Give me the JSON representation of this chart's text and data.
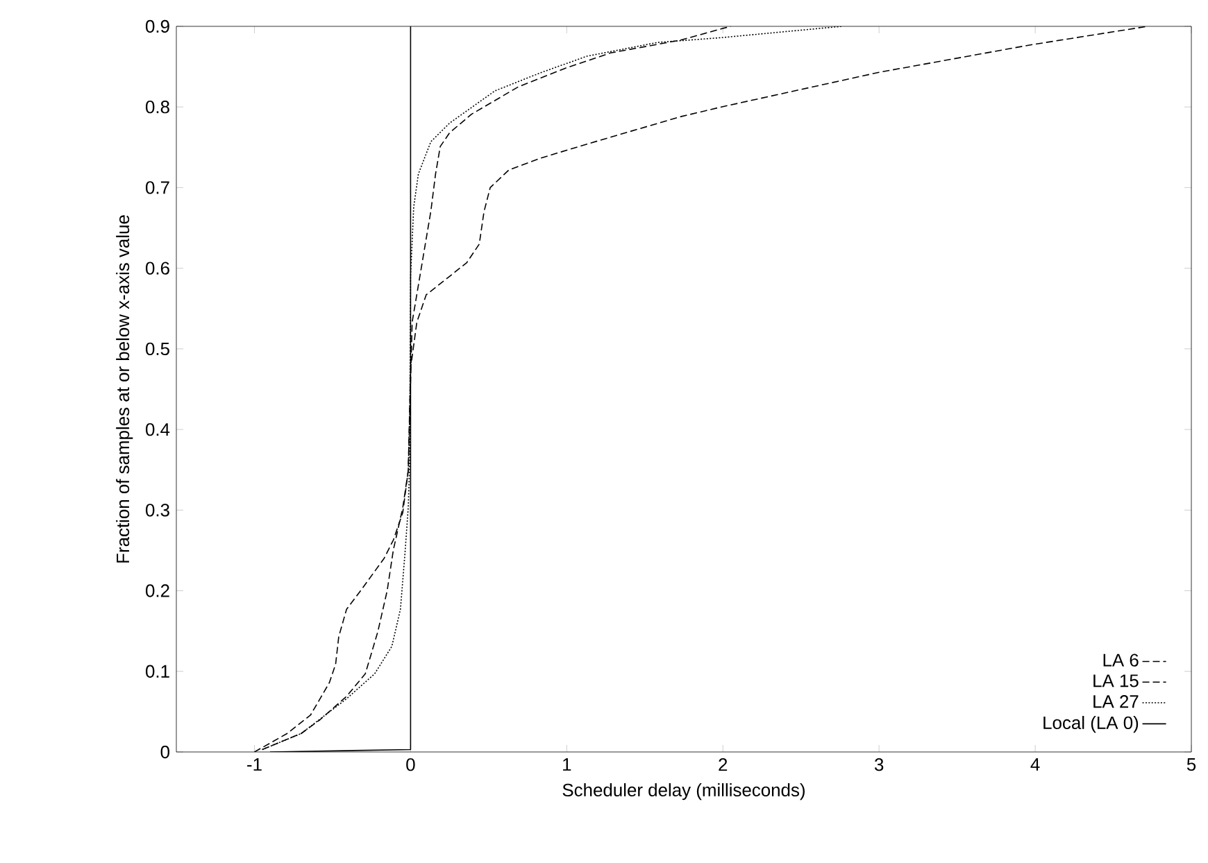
{
  "chart_data": {
    "type": "line",
    "xlabel": "Scheduler delay (milliseconds)",
    "ylabel": "Fraction of samples at or below x-axis value",
    "xlim": [
      -1.5,
      5
    ],
    "ylim": [
      0,
      0.9
    ],
    "xticks": [
      -1,
      0,
      1,
      2,
      3,
      4,
      5
    ],
    "yticks": [
      0,
      0.1,
      0.2,
      0.3,
      0.4,
      0.5,
      0.6,
      0.7,
      0.8,
      0.9
    ],
    "grid": false,
    "legend": "bottom right",
    "marker": "none",
    "series": [
      {
        "name": "LA  6",
        "color": "#000000",
        "line_style": "dashed",
        "x": [
          -1,
          -0.79,
          -0.64,
          -0.52,
          -0.48,
          -0.46,
          -0.41,
          -0.32,
          -0.17,
          -0.11,
          -0.05,
          -0.015,
          0,
          0.04,
          0.1,
          0.25,
          0.36,
          0.44,
          0.47,
          0.51,
          0.63,
          0.84,
          1.13,
          1.73,
          1.99,
          3.0,
          3.97,
          4.72
        ],
        "values": [
          0,
          0.023,
          0.046,
          0.086,
          0.109,
          0.143,
          0.177,
          0.2,
          0.24,
          0.263,
          0.297,
          0.349,
          0.476,
          0.533,
          0.567,
          0.59,
          0.607,
          0.63,
          0.67,
          0.7,
          0.722,
          0.737,
          0.754,
          0.788,
          0.8,
          0.843,
          0.877,
          0.9
        ]
      },
      {
        "name": "LA 15",
        "color": "#000000",
        "line_style": "dashed",
        "x": [
          -0.95,
          -0.7,
          -0.58,
          -0.41,
          -0.29,
          -0.21,
          -0.15,
          -0.11,
          -0.05,
          -0.015,
          0.01,
          0.07,
          0.13,
          0.16,
          0.19,
          0.25,
          0.39,
          0.69,
          0.99,
          1.28,
          1.73,
          1.99,
          2.05
        ],
        "values": [
          0.003,
          0.023,
          0.04,
          0.069,
          0.097,
          0.149,
          0.2,
          0.251,
          0.303,
          0.349,
          0.533,
          0.602,
          0.671,
          0.717,
          0.751,
          0.768,
          0.791,
          0.825,
          0.848,
          0.867,
          0.883,
          0.897,
          0.9
        ]
      },
      {
        "name": "LA 27",
        "color": "#000000",
        "line_style": "dotted",
        "x": [
          -0.95,
          -0.7,
          -0.41,
          -0.23,
          -0.12,
          -0.065,
          -0.036,
          -0.015,
          -0.006,
          0,
          0.02,
          0.05,
          0.13,
          0.25,
          0.54,
          0.84,
          1.13,
          1.58,
          1.99,
          2.76
        ],
        "values": [
          0.003,
          0.023,
          0.066,
          0.097,
          0.131,
          0.177,
          0.246,
          0.303,
          0.36,
          0.59,
          0.676,
          0.717,
          0.757,
          0.78,
          0.82,
          0.843,
          0.863,
          0.88,
          0.886,
          0.9
        ]
      },
      {
        "name": "Local (LA 0)",
        "color": "#000000",
        "line_style": "solid",
        "x": [
          -0.9,
          0,
          0
        ],
        "values": [
          0,
          0.003,
          0.9
        ]
      }
    ]
  }
}
